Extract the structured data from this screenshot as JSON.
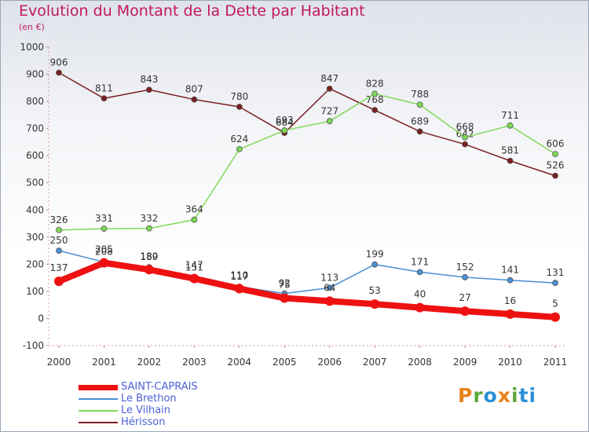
{
  "title": "Evolution du Montant de la Dette par Habitant",
  "subtitle": "(en €)",
  "brand": {
    "letters": [
      "P",
      "r",
      "o",
      "x",
      "i",
      "t",
      "i"
    ],
    "colors": [
      "#e8811a",
      "#5da83b",
      "#2a8fd6",
      "#e8811a",
      "#5da83b",
      "#2a8fd6",
      "#2a8fd6"
    ]
  },
  "chart_data": {
    "type": "line",
    "x": [
      "2000",
      "2001",
      "2002",
      "2003",
      "2004",
      "2005",
      "2006",
      "2007",
      "2008",
      "2009",
      "2010",
      "2011"
    ],
    "ylim": [
      -100,
      1000
    ],
    "yticks": [
      "-100",
      "0",
      "100",
      "200",
      "300",
      "400",
      "500",
      "600",
      "700",
      "800",
      "900",
      "1000"
    ],
    "grid": false,
    "legend_position": "bottom-left",
    "series": [
      {
        "name": "SAINT-CAPRAIS",
        "color": "#ee1111",
        "values": [
          137,
          205,
          180,
          147,
          110,
          75,
          64,
          53,
          40,
          27,
          16,
          5
        ],
        "labels": [
          "137",
          "205",
          "180",
          "147",
          "110",
          "75",
          "64",
          "53",
          "40",
          "27",
          "16",
          "5"
        ]
      },
      {
        "name": "Le Brethon",
        "color": "#4a8fd4",
        "values": [
          250,
          208,
          189,
          151,
          117,
          92,
          113,
          199,
          171,
          152,
          141,
          131
        ],
        "labels": [
          "250",
          "208",
          "189",
          "151",
          "117",
          "92",
          "113",
          "199",
          "171",
          "152",
          "141",
          "131"
        ]
      },
      {
        "name": "Le Vilhain",
        "color": "#7ed957",
        "values": [
          326,
          331,
          332,
          364,
          624,
          693,
          727,
          828,
          788,
          668,
          711,
          606
        ],
        "labels": [
          "326",
          "331",
          "332",
          "364",
          "624",
          "693",
          "727",
          "828",
          "788",
          "668",
          "711",
          "606"
        ]
      },
      {
        "name": "Hérisson",
        "color": "#7a1f1f",
        "values": [
          906,
          811,
          843,
          807,
          780,
          684,
          847,
          768,
          689,
          642,
          581,
          526
        ],
        "labels": [
          "906",
          "811",
          "843",
          "807",
          "780",
          "684",
          "847",
          "768",
          "689",
          "642",
          "581",
          "526"
        ]
      }
    ]
  }
}
